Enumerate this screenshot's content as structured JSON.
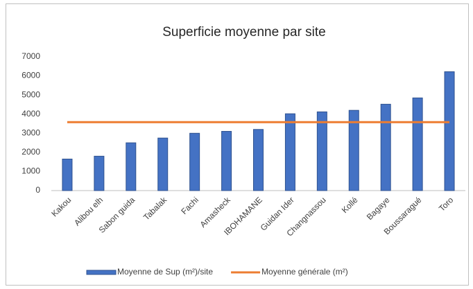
{
  "chart_data": {
    "type": "bar",
    "title": "Superficie moyenne par site",
    "categories": [
      "Kakou",
      "Alibou elh",
      "Sabon guida",
      "Tabalak",
      "Fachi",
      "Amasheck",
      "IBOHAMANE",
      "Guidan Ider",
      "Changnassou",
      "Kollé",
      "Bagaye",
      "Boussaragué",
      "Toro"
    ],
    "series": [
      {
        "name": "Moyenne de Sup (m²)/site",
        "type": "bar",
        "color": "#4472c4",
        "values": [
          1650,
          1800,
          2500,
          2750,
          3000,
          3100,
          3200,
          4020,
          4120,
          4200,
          4520,
          4850,
          6220
        ]
      },
      {
        "name": "Moyenne générale (m²)",
        "type": "line",
        "color": "#ed7d31",
        "values": [
          3580,
          3580,
          3580,
          3580,
          3580,
          3580,
          3580,
          3580,
          3580,
          3580,
          3580,
          3580,
          3580
        ]
      }
    ],
    "ylim": [
      0,
      7000
    ],
    "yticks": [
      0,
      1000,
      2000,
      3000,
      4000,
      5000,
      6000,
      7000
    ],
    "grid": false,
    "legend": "bottom"
  }
}
